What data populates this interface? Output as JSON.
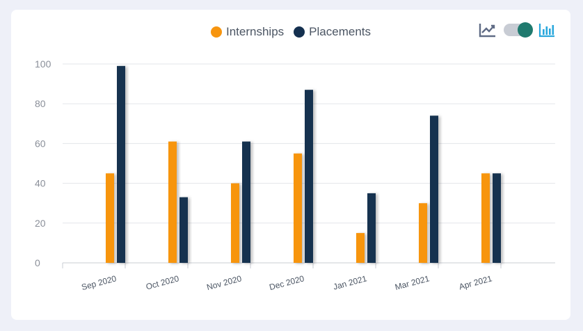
{
  "legend": {
    "internships": "Internships",
    "placements": "Placements"
  },
  "toolbar": {
    "line_view_icon": "line-chart-icon",
    "bar_view_icon": "bar-chart-icon",
    "toggle_state": "bar"
  },
  "colors": {
    "internships": "#f7950f",
    "placements": "#14304f",
    "active_icon": "#29a7dc",
    "inactive_icon": "#5f6b85"
  },
  "chart_data": {
    "type": "bar",
    "categories": [
      "Sep 2020",
      "Oct 2020",
      "Nov 2020",
      "Dec 2020",
      "Jan 2021",
      "Mar 2021",
      "Apr 2021"
    ],
    "series": [
      {
        "name": "Internships",
        "values": [
          45,
          61,
          40,
          55,
          15,
          30,
          45
        ]
      },
      {
        "name": "Placements",
        "values": [
          99,
          33,
          61,
          87,
          35,
          74,
          45
        ]
      }
    ],
    "yticks": [
      "0",
      "20",
      "40",
      "60",
      "80",
      "100"
    ],
    "ylim": [
      0,
      100
    ],
    "grid": true,
    "legend_position": "top-center"
  }
}
